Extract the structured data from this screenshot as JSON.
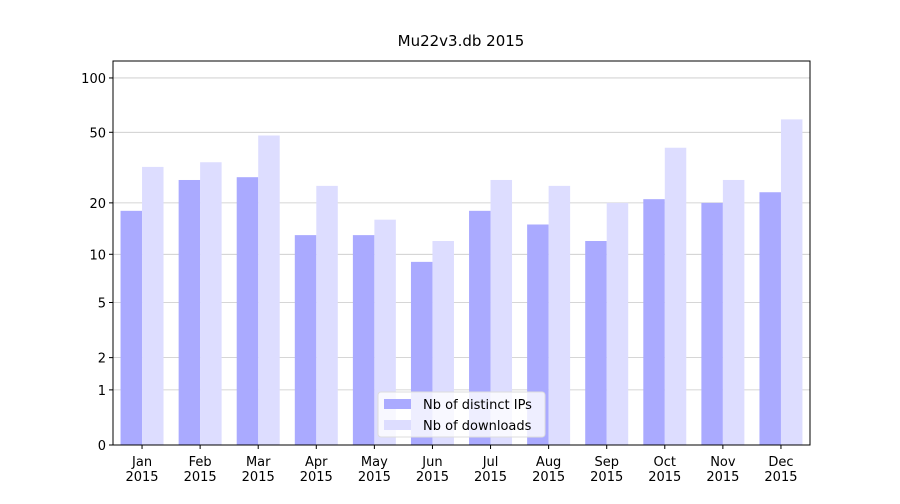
{
  "chart_data": {
    "type": "bar",
    "title": "Mu22v3.db 2015",
    "categories": [
      "Jan\n2015",
      "Feb\n2015",
      "Mar\n2015",
      "Apr\n2015",
      "May\n2015",
      "Jun\n2015",
      "Jul\n2015",
      "Aug\n2015",
      "Sep\n2015",
      "Oct\n2015",
      "Nov\n2015",
      "Dec\n2015"
    ],
    "series": [
      {
        "name": "Nb of distinct IPs",
        "color": "#aaaaff",
        "values": [
          18,
          27,
          28,
          13,
          13,
          9,
          18,
          15,
          12,
          21,
          20,
          23
        ]
      },
      {
        "name": "Nb of downloads",
        "color": "#ddddff",
        "values": [
          32,
          34,
          48,
          25,
          16,
          12,
          27,
          25,
          20,
          41,
          27,
          59
        ]
      }
    ],
    "yscale": "log1p",
    "ylim": [
      0,
      124
    ],
    "yticks": [
      0,
      1,
      2,
      5,
      10,
      20,
      50,
      100
    ],
    "grid": true,
    "legend": "lower center"
  }
}
